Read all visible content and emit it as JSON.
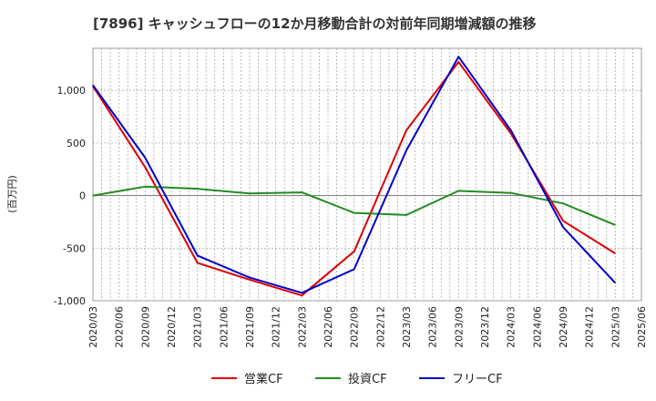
{
  "chart_data": {
    "type": "line",
    "title": "[7896]  キャッシュフローの12か月移動合計の対前年同期増減額の推移",
    "ylabel": "(百万円)",
    "xlabel": "",
    "ylim": [
      -1000,
      1400
    ],
    "yticks": [
      -1000,
      -500,
      0,
      500,
      1000
    ],
    "ytick_labels": [
      "-1,000",
      "-500",
      "0",
      "500",
      "1,000"
    ],
    "categories": [
      "2020/03",
      "2020/06",
      "2020/09",
      "2020/12",
      "2021/03",
      "2021/06",
      "2021/09",
      "2021/12",
      "2022/03",
      "2022/06",
      "2022/09",
      "2022/12",
      "2023/03",
      "2023/06",
      "2023/09",
      "2023/12",
      "2024/03",
      "2024/06",
      "2024/09",
      "2024/12",
      "2025/03",
      "2025/06"
    ],
    "series": [
      {
        "name": "営業CF",
        "color": "#dd0000",
        "values": [
          1040,
          null,
          270,
          null,
          -640,
          null,
          -800,
          null,
          -950,
          null,
          -530,
          null,
          620,
          null,
          1270,
          null,
          590,
          null,
          -240,
          null,
          -550,
          null
        ]
      },
      {
        "name": "投資CF",
        "color": "#228b22",
        "values": [
          0,
          null,
          85,
          null,
          65,
          null,
          20,
          null,
          30,
          null,
          -165,
          null,
          -185,
          null,
          45,
          null,
          25,
          null,
          -75,
          null,
          -280,
          null
        ]
      },
      {
        "name": "フリーCF",
        "color": "#0000cc",
        "values": [
          1050,
          null,
          360,
          null,
          -570,
          null,
          -780,
          null,
          -925,
          null,
          -700,
          null,
          430,
          null,
          1320,
          null,
          620,
          null,
          -300,
          null,
          -830,
          null
        ]
      }
    ],
    "grid": true,
    "legend_position": "bottom"
  }
}
